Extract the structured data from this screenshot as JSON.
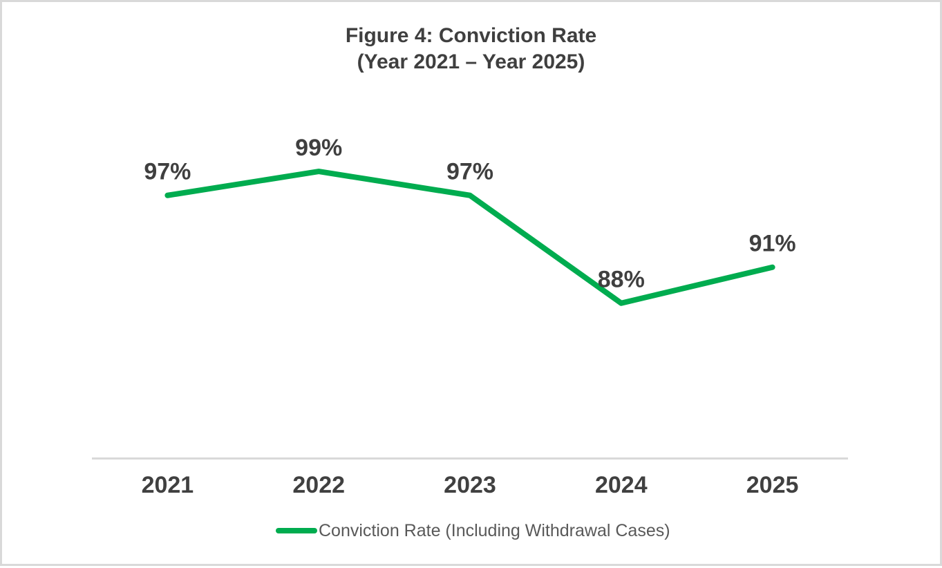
{
  "title": {
    "line1": "Figure 4: Conviction Rate",
    "line2": "(Year 2021 – Year 2025)"
  },
  "legend": {
    "label": "Conviction Rate (Including Withdrawal Cases)",
    "swatch_icon": "line-swatch-icon"
  },
  "colors": {
    "line": "#00ac4f",
    "axis_line": "#d9d9d9",
    "border": "#d9d9d9",
    "title_text": "#3f3f3f",
    "label_text": "#3f3f3f",
    "legend_text": "#595959"
  },
  "chart_data": {
    "type": "line",
    "title": "Figure 4: Conviction Rate (Year 2021 – Year 2025)",
    "categories": [
      "2021",
      "2022",
      "2023",
      "2024",
      "2025"
    ],
    "series": [
      {
        "name": "Conviction Rate (Including Withdrawal Cases)",
        "values": [
          97,
          99,
          97,
          88,
          91
        ],
        "data_labels": [
          "97%",
          "99%",
          "97%",
          "88%",
          "91%"
        ],
        "color": "#00ac4f"
      }
    ],
    "xlabel": "",
    "ylabel": "",
    "ylim": [
      75,
      100
    ],
    "y_axis_visible": false,
    "grid": false,
    "data_labels_shown": true,
    "legend_position": "bottom"
  }
}
